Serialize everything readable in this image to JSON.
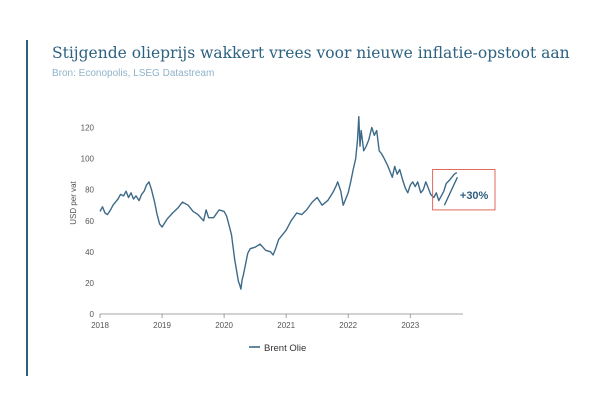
{
  "header": {
    "title": "Stijgende olieprijs wakkert vrees voor nieuwe inflatie-opstoot aan",
    "source": "Bron: Econopolis, LSEG Datastream"
  },
  "colors": {
    "line": "#3d6a89",
    "accent": "#2f5f7f",
    "annotation_box": "#e06a5e",
    "title": "#2d6280",
    "subtitle": "#8fb3c9"
  },
  "chart_data": {
    "type": "line",
    "title": "Stijgende olieprijs wakkert vrees voor nieuwe inflatie-opstoot aan",
    "subtitle": "Bron: Econopolis, LSEG Datastream",
    "ylabel": "USD per vat",
    "xlabel": "",
    "ylim": [
      0,
      130
    ],
    "xlim": [
      2018.0,
      2023.85
    ],
    "yticks": [
      0,
      20,
      40,
      60,
      80,
      100,
      120
    ],
    "xticks": [
      "2018",
      "2019",
      "2020",
      "2021",
      "2022",
      "2023"
    ],
    "grid": false,
    "legend_position": "bottom-center",
    "annotation": "+30%",
    "series": [
      {
        "name": "Brent Olie",
        "x": [
          2018.0,
          2018.04,
          2018.08,
          2018.12,
          2018.17,
          2018.21,
          2018.25,
          2018.29,
          2018.33,
          2018.38,
          2018.42,
          2018.46,
          2018.5,
          2018.54,
          2018.58,
          2018.63,
          2018.67,
          2018.71,
          2018.75,
          2018.79,
          2018.83,
          2018.88,
          2018.92,
          2018.96,
          2019.0,
          2019.08,
          2019.17,
          2019.25,
          2019.33,
          2019.42,
          2019.5,
          2019.58,
          2019.67,
          2019.71,
          2019.75,
          2019.83,
          2019.92,
          2020.0,
          2020.04,
          2020.08,
          2020.12,
          2020.17,
          2020.21,
          2020.23,
          2020.25,
          2020.27,
          2020.29,
          2020.31,
          2020.33,
          2020.38,
          2020.42,
          2020.5,
          2020.58,
          2020.67,
          2020.75,
          2020.79,
          2020.83,
          2020.88,
          2020.92,
          2021.0,
          2021.08,
          2021.17,
          2021.25,
          2021.33,
          2021.42,
          2021.5,
          2021.58,
          2021.67,
          2021.75,
          2021.8,
          2021.83,
          2021.88,
          2021.92,
          2022.0,
          2022.04,
          2022.08,
          2022.12,
          2022.15,
          2022.17,
          2022.19,
          2022.21,
          2022.25,
          2022.29,
          2022.33,
          2022.38,
          2022.42,
          2022.46,
          2022.5,
          2022.54,
          2022.58,
          2022.63,
          2022.67,
          2022.71,
          2022.75,
          2022.79,
          2022.83,
          2022.88,
          2022.92,
          2022.96,
          2023.0,
          2023.04,
          2023.08,
          2023.12,
          2023.17,
          2023.21,
          2023.25,
          2023.29,
          2023.33,
          2023.38,
          2023.42,
          2023.46,
          2023.5,
          2023.54,
          2023.58,
          2023.63,
          2023.67,
          2023.71,
          2023.75
        ],
        "y": [
          66,
          69,
          65,
          64,
          67,
          70,
          72,
          74,
          77,
          76,
          79,
          75,
          78,
          74,
          76,
          73,
          77,
          79,
          83,
          85,
          80,
          72,
          64,
          58,
          56,
          61,
          65,
          68,
          72,
          70,
          66,
          64,
          60,
          67,
          62,
          62,
          67,
          66,
          63,
          57,
          51,
          35,
          26,
          21,
          19,
          16,
          22,
          25,
          29,
          39,
          42,
          43,
          45,
          41,
          40,
          38,
          42,
          48,
          50,
          54,
          60,
          65,
          64,
          67,
          72,
          75,
          70,
          73,
          78,
          82,
          85,
          79,
          70,
          78,
          85,
          93,
          100,
          112,
          127,
          108,
          118,
          105,
          108,
          112,
          120,
          115,
          118,
          105,
          103,
          100,
          96,
          92,
          88,
          95,
          90,
          93,
          86,
          81,
          78,
          83,
          85,
          82,
          85,
          78,
          80,
          85,
          81,
          77,
          75,
          78,
          73,
          76,
          79,
          84,
          86,
          88,
          90,
          91
        ]
      }
    ]
  }
}
